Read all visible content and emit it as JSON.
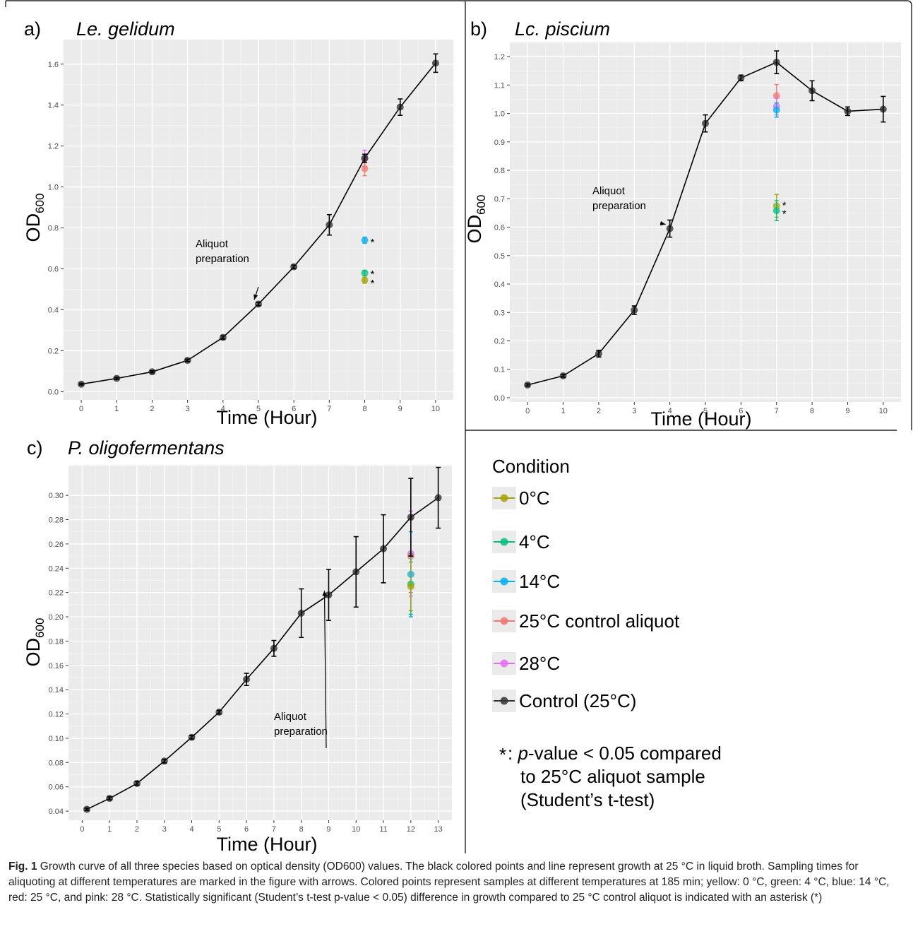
{
  "chart_data": [
    {
      "type": "line",
      "panel_letter": "a)",
      "species": "Le. gelidum",
      "xlabel": "Time (Hour)",
      "ylabel_main": "OD",
      "ylabel_sub": "600",
      "xlim": [
        -0.5,
        10.5
      ],
      "ylim": [
        -0.04,
        1.72
      ],
      "x_ticks": [
        0,
        1,
        2,
        3,
        4,
        5,
        6,
        7,
        8,
        9,
        10
      ],
      "y_ticks": [
        0.0,
        0.2,
        0.4,
        0.6,
        0.8,
        1.0,
        1.2,
        1.4,
        1.6
      ],
      "y_tick_labels": [
        "0.0",
        "0.2",
        "0.4",
        "0.6",
        "0.8",
        "1.0",
        "1.2",
        "1.4",
        "1.6"
      ],
      "grid": true,
      "control": {
        "x": [
          0,
          1,
          2,
          3,
          4,
          5,
          6,
          7,
          8,
          9,
          10
        ],
        "y": [
          0.037,
          0.065,
          0.097,
          0.153,
          0.265,
          0.428,
          0.61,
          0.815,
          1.14,
          1.39,
          1.605
        ],
        "err": [
          0.004,
          0.005,
          0.005,
          0.006,
          0.008,
          0.008,
          0.008,
          0.05,
          0.02,
          0.04,
          0.045
        ]
      },
      "aliquots": [
        {
          "condition": "28°C",
          "x": 8,
          "y": 1.14,
          "err": 0.04
        },
        {
          "condition": "25°C control aliquot",
          "x": 8,
          "y": 1.09,
          "err": 0.035
        },
        {
          "condition": "14°C",
          "x": 8,
          "y": 0.74,
          "err": 0.015
        },
        {
          "condition": "4°C",
          "x": 8,
          "y": 0.58,
          "err": 0.012
        },
        {
          "condition": "0°C",
          "x": 8,
          "y": 0.545,
          "err": 0.015
        }
      ],
      "significance": [
        {
          "x": 8,
          "y": 0.74,
          "label": "*"
        },
        {
          "x": 8,
          "y": 0.585,
          "label": "*"
        },
        {
          "x": 8,
          "y": 0.54,
          "label": "*"
        }
      ],
      "annotation": {
        "lines": [
          "Aliquot",
          "preparation"
        ],
        "target_x": 5,
        "target_y": 0.428
      }
    },
    {
      "type": "line",
      "panel_letter": "b)",
      "species": "Lc. piscium",
      "xlabel": "Time (Hour)",
      "ylabel_main": "OD",
      "ylabel_sub": "600",
      "xlim": [
        -0.5,
        10.5
      ],
      "ylim": [
        -0.015,
        1.25
      ],
      "x_ticks": [
        0,
        1,
        2,
        3,
        4,
        5,
        6,
        7,
        8,
        9,
        10
      ],
      "y_ticks": [
        0.0,
        0.1,
        0.2,
        0.3,
        0.4,
        0.5,
        0.6,
        0.7,
        0.8,
        0.9,
        1.0,
        1.1,
        1.2
      ],
      "y_tick_labels": [
        "0.0",
        "0.1",
        "0.2",
        "0.3",
        "0.4",
        "0.5",
        "0.6",
        "0.7",
        "0.8",
        "0.9",
        "1.0",
        "1.1",
        "1.2"
      ],
      "grid": true,
      "control": {
        "x": [
          0,
          1,
          2,
          3,
          4,
          5,
          6,
          7,
          8,
          9,
          10
        ],
        "y": [
          0.045,
          0.077,
          0.155,
          0.308,
          0.595,
          0.965,
          1.125,
          1.18,
          1.08,
          1.008,
          1.015
        ],
        "err": [
          0.004,
          0.005,
          0.012,
          0.015,
          0.03,
          0.03,
          0.01,
          0.04,
          0.035,
          0.015,
          0.045
        ]
      },
      "aliquots": [
        {
          "condition": "25°C control aliquot",
          "x": 7,
          "y": 1.062,
          "err": 0.04
        },
        {
          "condition": "28°C",
          "x": 7,
          "y": 1.025,
          "err": 0.03
        },
        {
          "condition": "14°C",
          "x": 7,
          "y": 1.012,
          "err": 0.025
        },
        {
          "condition": "0°C",
          "x": 7,
          "y": 0.675,
          "err": 0.04
        },
        {
          "condition": "4°C",
          "x": 7,
          "y": 0.658,
          "err": 0.035
        }
      ],
      "significance": [
        {
          "x": 7,
          "y": 0.685,
          "label": "*"
        },
        {
          "x": 7,
          "y": 0.655,
          "label": "*"
        }
      ],
      "annotation": {
        "lines": [
          "Aliquot",
          "preparation"
        ],
        "target_x": 4,
        "target_y": 0.595
      }
    },
    {
      "type": "line",
      "panel_letter": "c)",
      "species": "P. oligofermentans",
      "xlabel": "Time (Hour)",
      "ylabel_main": "OD",
      "ylabel_sub": "600",
      "xlim": [
        -0.5,
        13.5
      ],
      "ylim": [
        0.0325,
        0.3245
      ],
      "x_ticks": [
        0,
        1,
        2,
        3,
        4,
        5,
        6,
        7,
        8,
        9,
        10,
        11,
        12,
        13
      ],
      "y_ticks": [
        0.04,
        0.06,
        0.08,
        0.1,
        0.12,
        0.14,
        0.16,
        0.18,
        0.2,
        0.22,
        0.24,
        0.26,
        0.28,
        0.3
      ],
      "y_tick_labels": [
        "0.04",
        "0.06",
        "0.08",
        "0.10",
        "0.12",
        "0.14",
        "0.16",
        "0.18",
        "0.20",
        "0.22",
        "0.24",
        "0.26",
        "0.28",
        "0.30"
      ],
      "grid": true,
      "control": {
        "x": [
          0.17,
          1,
          2,
          3,
          4,
          5,
          6,
          7,
          8,
          9,
          10,
          11,
          12,
          13
        ],
        "y": [
          0.0415,
          0.0505,
          0.0628,
          0.0812,
          0.1008,
          0.1215,
          0.1485,
          0.174,
          0.203,
          0.218,
          0.237,
          0.256,
          0.282,
          0.298
        ],
        "err": [
          0.001,
          0.0012,
          0.0015,
          0.0015,
          0.0015,
          0.0015,
          0.005,
          0.0065,
          0.02,
          0.021,
          0.029,
          0.028,
          0.032,
          0.025
        ]
      },
      "aliquots": [
        {
          "condition": "28°C",
          "x": 12,
          "y": 0.252,
          "err": 0.035
        },
        {
          "condition": "25°C control aliquot",
          "x": 12,
          "y": 0.25,
          "err": 0.03
        },
        {
          "condition": "14°C",
          "x": 12,
          "y": 0.235,
          "err": 0.035
        },
        {
          "condition": "4°C",
          "x": 12,
          "y": 0.227,
          "err": 0.025
        },
        {
          "condition": "0°C",
          "x": 12,
          "y": 0.225,
          "err": 0.02
        }
      ],
      "significance": [],
      "annotation": {
        "lines": [
          "Aliquot",
          "preparation"
        ],
        "target_x": 9,
        "target_y": 0.218
      }
    }
  ],
  "legend": {
    "title": "Condition",
    "placement": "bottom-right",
    "entries": [
      {
        "label": "0°C",
        "color": "#a3a500"
      },
      {
        "label": "4°C",
        "color": "#00bf7d"
      },
      {
        "label": "14°C",
        "color": "#00b0f6"
      },
      {
        "label": "25°C control aliquot",
        "color": "#f8766d"
      },
      {
        "label": "28°C",
        "color": "#e76bf3"
      },
      {
        "label": "Control (25°C)",
        "color": "#333333"
      }
    ]
  },
  "note": {
    "symbol": "*",
    "lines": [
      ": ",
      "p",
      "-value < 0.05 compared",
      "to 25°C aliquot sample",
      "(Student’s t-test)"
    ]
  },
  "caption": {
    "label": "Fig. 1",
    "text": "Growth curve of all three species based on optical density (OD600) values. The black colored points and line represent growth at 25 °C in liquid broth. Sampling times for aliquoting at different temperatures are marked in the figure with arrows. Colored points represent samples at different temperatures at 185 min; yellow: 0 °C, green: 4 °C, blue: 14 °C, red: 25 °C, and pink: 28 °C. Statistically significant (Student’s t-test p-value < 0.05) difference in growth compared to 25 °C control aliquot is indicated with an asterisk (*)"
  },
  "colors": {
    "control": "#333333",
    "plot_background": "#ebebeb",
    "grid": "#ffffff"
  }
}
